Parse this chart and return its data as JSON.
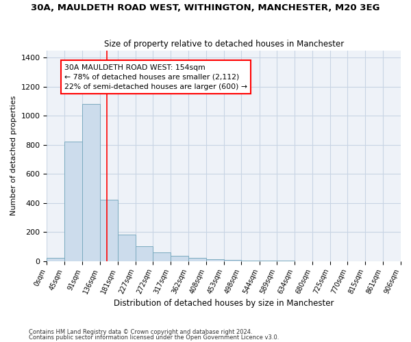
{
  "title": "30A, MAULDETH ROAD WEST, WITHINGTON, MANCHESTER, M20 3EG",
  "subtitle": "Size of property relative to detached houses in Manchester",
  "xlabel": "Distribution of detached houses by size in Manchester",
  "ylabel": "Number of detached properties",
  "bin_edges": [
    0,
    45,
    91,
    136,
    181,
    227,
    272,
    317,
    362,
    408,
    453,
    498,
    544,
    589,
    634,
    680,
    725,
    770,
    815,
    861,
    906
  ],
  "bar_heights": [
    20,
    820,
    1080,
    420,
    180,
    100,
    60,
    35,
    20,
    15,
    10,
    5,
    2,
    1,
    0,
    0,
    0,
    0,
    0,
    0
  ],
  "bar_color": "#ccdcec",
  "bar_edge_color": "#7aaabf",
  "grid_color": "#c8d4e4",
  "bg_color": "#eef2f8",
  "red_line_x": 154,
  "annotation_text": "30A MAULDETH ROAD WEST: 154sqm\n← 78% of detached houses are smaller (2,112)\n22% of semi-detached houses are larger (600) →",
  "ylim": [
    0,
    1450
  ],
  "yticks": [
    0,
    200,
    400,
    600,
    800,
    1000,
    1200,
    1400
  ],
  "footer_line1": "Contains HM Land Registry data © Crown copyright and database right 2024.",
  "footer_line2": "Contains public sector information licensed under the Open Government Licence v3.0."
}
